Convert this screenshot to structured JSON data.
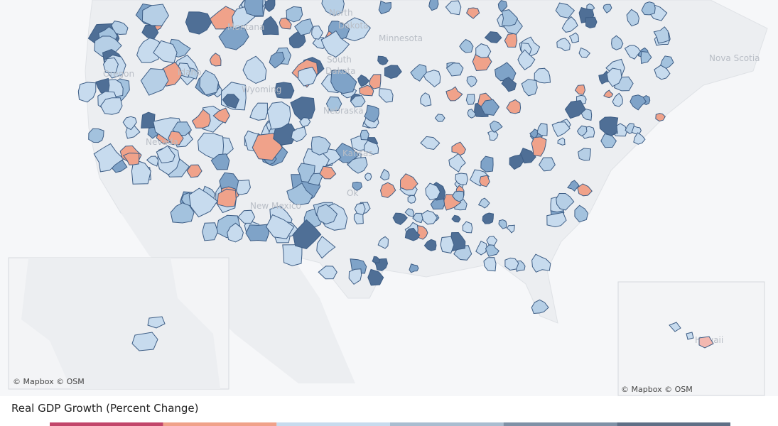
{
  "map": {
    "region_labels": [
      "North",
      "Dakota",
      "Minnesota",
      "South",
      "Dakota",
      "Montana",
      "Idaho",
      "Oregon",
      "Wyoming",
      "Nebraska",
      "Nevada",
      "Kansas",
      "Ok",
      "New Mexico",
      "Nova Scotia",
      "Hawaii"
    ],
    "attribution_main": "© Mapbox  © OSM",
    "attribution_alaska": "© Mapbox  © OSM",
    "attribution_hawaii": "© Mapbox  © OSM"
  },
  "legend": {
    "title": "Real GDP Growth (Percent Change)",
    "colors": [
      "#c2466a",
      "#f0a28a",
      "#c7dbee",
      "#a9bdd0",
      "#7f91a6",
      "#5f6f86"
    ]
  }
}
